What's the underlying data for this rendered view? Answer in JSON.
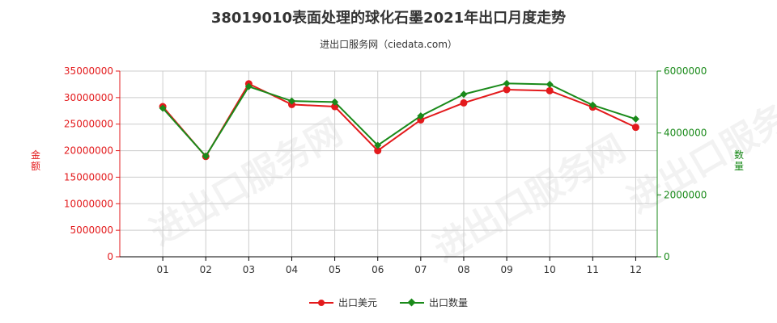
{
  "title": "38019010表面处理的球化石墨2021年出口月度走势",
  "subtitle": "进出口服务网（ciedata.com）",
  "watermark": "进出口服务网",
  "colors": {
    "amount": "#e31a1c",
    "quantity": "#1a8a1a",
    "grid": "#cccccc",
    "axis": "#000000"
  },
  "chart_data": {
    "type": "line",
    "categories": [
      "01",
      "02",
      "03",
      "04",
      "05",
      "06",
      "07",
      "08",
      "09",
      "10",
      "11",
      "12"
    ],
    "y_left": {
      "label": "金额",
      "min": 0,
      "max": 35000000,
      "ticks": [
        "0",
        "5000000",
        "10000000",
        "15000000",
        "20000000",
        "25000000",
        "30000000",
        "35000000"
      ]
    },
    "y_right": {
      "label": "数量",
      "min": 0,
      "max": 6000000,
      "ticks": [
        "0",
        "2000000",
        "4000000",
        "6000000"
      ]
    },
    "grid": true,
    "legend_position": "bottom-center",
    "series": [
      {
        "name": "出口美元",
        "axis": "left",
        "color": "#e31a1c",
        "marker": "circle",
        "values": [
          28300000,
          18900000,
          32600000,
          28700000,
          28300000,
          20000000,
          25800000,
          29000000,
          31500000,
          31300000,
          28200000,
          24400000
        ]
      },
      {
        "name": "出口数量",
        "axis": "right",
        "color": "#1a8a1a",
        "marker": "diamond",
        "values": [
          4800000,
          3250000,
          5500000,
          5030000,
          5000000,
          3600000,
          4550000,
          5250000,
          5600000,
          5570000,
          4900000,
          4450000
        ]
      }
    ]
  }
}
